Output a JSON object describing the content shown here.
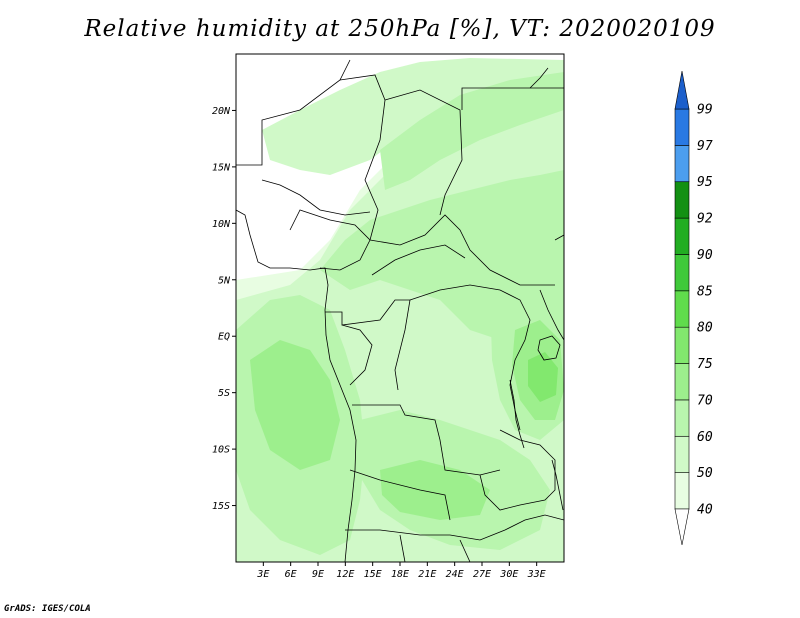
{
  "title": "Relative humidity at 250hPa [%], VT: 2020020109",
  "credit": "GrADS: IGES/COLA",
  "map": {
    "lon_range": [
      0,
      36
    ],
    "lat_range": [
      -20,
      25
    ],
    "lon_ticks": [
      {
        "value": 3,
        "label": "3E"
      },
      {
        "value": 6,
        "label": "6E"
      },
      {
        "value": 9,
        "label": "9E"
      },
      {
        "value": 12,
        "label": "12E"
      },
      {
        "value": 15,
        "label": "15E"
      },
      {
        "value": 18,
        "label": "18E"
      },
      {
        "value": 21,
        "label": "21E"
      },
      {
        "value": 24,
        "label": "24E"
      },
      {
        "value": 27,
        "label": "27E"
      },
      {
        "value": 30,
        "label": "30E"
      },
      {
        "value": 33,
        "label": "33E"
      }
    ],
    "lat_ticks": [
      {
        "value": 20,
        "label": "20N"
      },
      {
        "value": 15,
        "label": "15N"
      },
      {
        "value": 10,
        "label": "10N"
      },
      {
        "value": 5,
        "label": "5N"
      },
      {
        "value": 0,
        "label": "EQ"
      },
      {
        "value": -5,
        "label": "5S"
      },
      {
        "value": -10,
        "label": "10S"
      },
      {
        "value": -15,
        "label": "15S"
      }
    ]
  },
  "colorbar": {
    "levels": [
      {
        "label": "40",
        "color": "#e8fde2"
      },
      {
        "label": "50",
        "color": "#d0f9c8"
      },
      {
        "label": "60",
        "color": "#b9f5ae"
      },
      {
        "label": "70",
        "color": "#9def8d"
      },
      {
        "label": "75",
        "color": "#82e86e"
      },
      {
        "label": "80",
        "color": "#60dc4c"
      },
      {
        "label": "85",
        "color": "#3fc93a"
      },
      {
        "label": "90",
        "color": "#22ad22"
      },
      {
        "label": "92",
        "color": "#139013"
      },
      {
        "label": "95",
        "color": "#4c9eef"
      },
      {
        "label": "97",
        "color": "#2979e3"
      },
      {
        "label": "99",
        "color": "#1c5fcb"
      }
    ],
    "under_color": "#ffffff",
    "over_color": "#1c5fcb"
  }
}
